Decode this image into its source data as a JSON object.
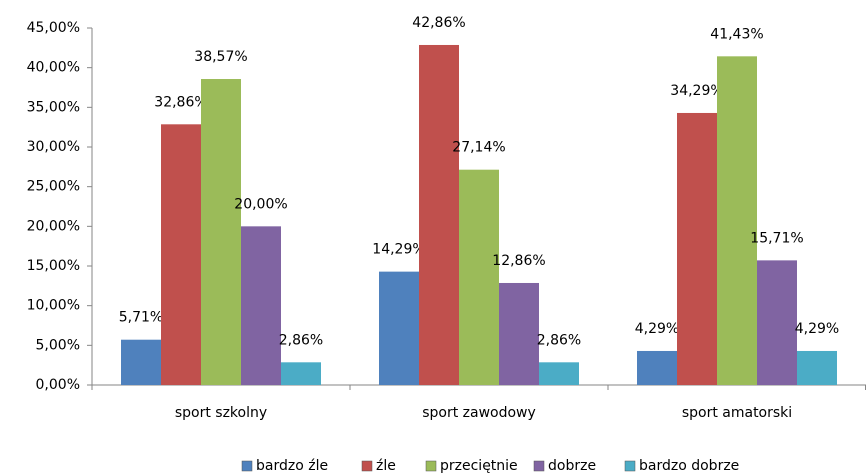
{
  "chart_data": {
    "type": "bar",
    "categories": [
      "sport szkolny",
      "sport zawodowy",
      "sport amatorski"
    ],
    "series": [
      {
        "name": "bardzo źle",
        "color": "#4F81BD",
        "values": [
          5.71,
          14.29,
          4.29
        ],
        "value_labels": [
          "5,71%",
          "14,29%",
          "4,29%"
        ]
      },
      {
        "name": "źle",
        "color": "#C0504D",
        "values": [
          32.86,
          42.86,
          34.29
        ],
        "value_labels": [
          "32,86%",
          "42,86%",
          "34,29%"
        ]
      },
      {
        "name": "przeciętnie",
        "color": "#9BBB59",
        "values": [
          38.57,
          27.14,
          41.43
        ],
        "value_labels": [
          "38,57%",
          "27,14%",
          "41,43%"
        ]
      },
      {
        "name": "dobrze",
        "color": "#8064A2",
        "values": [
          20.0,
          12.86,
          15.71
        ],
        "value_labels": [
          "20,00%",
          "12,86%",
          "15,71%"
        ]
      },
      {
        "name": "bardzo dobrze",
        "color": "#4BACC6",
        "values": [
          2.86,
          2.86,
          4.29
        ],
        "value_labels": [
          "2,86%",
          "2,86%",
          "4,29%"
        ]
      }
    ],
    "ylim": [
      0,
      45
    ],
    "yticks": [
      {
        "value": 0,
        "label": "0,00%"
      },
      {
        "value": 5,
        "label": "5,00%"
      },
      {
        "value": 10,
        "label": "10,00%"
      },
      {
        "value": 15,
        "label": "15,00%"
      },
      {
        "value": 20,
        "label": "20,00%"
      },
      {
        "value": 25,
        "label": "25,00%"
      },
      {
        "value": 30,
        "label": "30,00%"
      },
      {
        "value": 35,
        "label": "35,00%"
      },
      {
        "value": 40,
        "label": "40,00%"
      },
      {
        "value": 45,
        "label": "45,00%"
      }
    ],
    "grid": false,
    "legend": "bottom"
  }
}
